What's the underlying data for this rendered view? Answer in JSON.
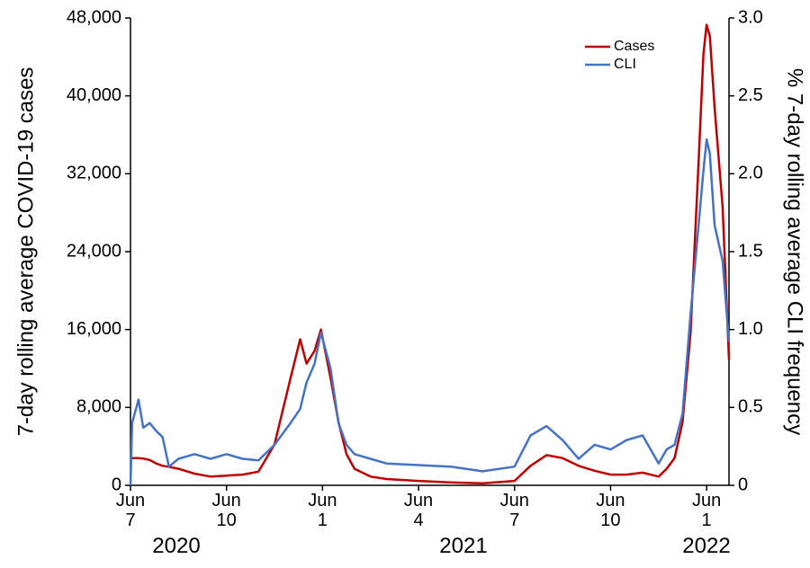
{
  "chart_data": {
    "type": "line",
    "y_label": "7-day rolling average COVID-19 cases",
    "y2_label": "% 7-day rolling average CLI frequency",
    "x": [
      0,
      0.05,
      0.25,
      0.4,
      0.6,
      0.8,
      1,
      1.2,
      1.5,
      2,
      2.5,
      3,
      3.5,
      4,
      4.5,
      5,
      5.3,
      5.5,
      5.75,
      5.95,
      6.25,
      6.5,
      6.75,
      7,
      7.5,
      8,
      9,
      10,
      11,
      12,
      12.5,
      13,
      13.5,
      14,
      14.5,
      15,
      15.5,
      16,
      16.5,
      16.75,
      17,
      17.25,
      17.5,
      17.75,
      17.9,
      18,
      18.1,
      18.25,
      18.5,
      18.7
    ],
    "series": [
      {
        "name": "Cases",
        "color": "#c00000",
        "values": [
          2800,
          2800,
          2800,
          2750,
          2600,
          2250,
          2000,
          1900,
          1700,
          1200,
          900,
          1000,
          1100,
          1400,
          4200,
          11000,
          15000,
          12500,
          13800,
          16000,
          11000,
          6500,
          3200,
          1700,
          900,
          650,
          450,
          300,
          200,
          450,
          2000,
          3100,
          2800,
          2000,
          1500,
          1100,
          1100,
          1300,
          900,
          1700,
          2800,
          6500,
          15700,
          33200,
          44300,
          47300,
          46150,
          38800,
          28600,
          12900
        ]
      },
      {
        "name": "CLI",
        "color": "#4472c4",
        "axis": "y2",
        "values": [
          0,
          0.4,
          0.55,
          0.37,
          0.4,
          0.35,
          0.31,
          0.12,
          0.17,
          0.2,
          0.17,
          0.2,
          0.17,
          0.16,
          0.26,
          0.4,
          0.49,
          0.66,
          0.78,
          0.98,
          0.75,
          0.4,
          0.26,
          0.2,
          0.17,
          0.14,
          0.13,
          0.12,
          0.09,
          0.12,
          0.32,
          0.38,
          0.29,
          0.17,
          0.26,
          0.23,
          0.29,
          0.32,
          0.14,
          0.23,
          0.26,
          0.46,
          1.1,
          1.67,
          2.02,
          2.22,
          2.13,
          1.67,
          1.44,
          0.92
        ]
      }
    ],
    "xlim": [
      0,
      18.7
    ],
    "xticks": [
      {
        "value": 0,
        "label": "Jun 7"
      },
      {
        "value": 3,
        "label": "Jun 10"
      },
      {
        "value": 6,
        "label": "Jun 1"
      },
      {
        "value": 9,
        "label": "Jun 4"
      },
      {
        "value": 12,
        "label": "Jun 7"
      },
      {
        "value": 15,
        "label": "Jun 10"
      },
      {
        "value": 18,
        "label": "Jun 1"
      }
    ],
    "years": [
      "2020",
      "2021",
      "2022"
    ],
    "ylim": [
      0,
      48000
    ],
    "yticks": [
      0,
      {
        "value": 8000,
        "label": "8,000"
      },
      {
        "value": 16000,
        "label": "16,000"
      },
      {
        "value": 24000,
        "label": "24,000"
      },
      {
        "value": 32000,
        "label": "32,000"
      },
      {
        "value": 40000,
        "label": "40,000"
      },
      {
        "value": 48000,
        "label": "48,000"
      }
    ],
    "y2lim": [
      0,
      3
    ],
    "y2ticks": [
      0,
      0.5,
      {
        "value": 1,
        "label": "1.0"
      },
      1.5,
      {
        "value": 2,
        "label": "2.0"
      },
      2.5,
      {
        "value": 3,
        "label": "3.0"
      }
    ],
    "grid": false,
    "legend": "upper right"
  }
}
